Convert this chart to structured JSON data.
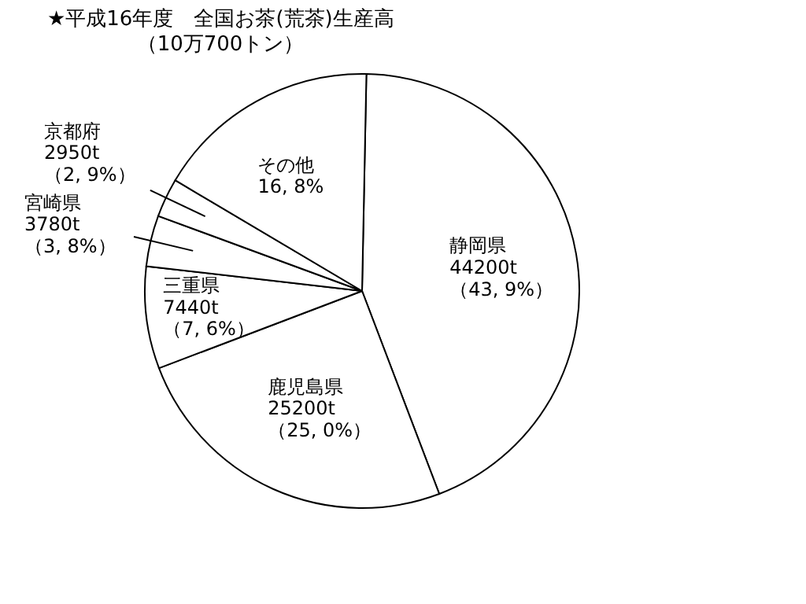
{
  "chart_data": {
    "type": "pie",
    "title": "★平成16年度　全国お茶(荒茶)生産高",
    "subtitle": "（10万700トン）",
    "categories": [
      "静岡県\n44200t\n（43, 9%）",
      "鹿児島県\n25200t\n（25, 0%）",
      "三重県\n7440t\n（7, 6%）",
      "宮崎県\n3780t\n（3, 8%）",
      "京都府\n2950t\n（2, 9%）",
      "その他\n16, 8%"
    ],
    "values": [
      43.9,
      25.0,
      7.6,
      3.8,
      2.9,
      16.8
    ],
    "colors": [
      "#ffffff",
      "#ffffff",
      "#ffffff",
      "#ffffff",
      "#ffffff",
      "#ffffff"
    ],
    "legend": false
  }
}
